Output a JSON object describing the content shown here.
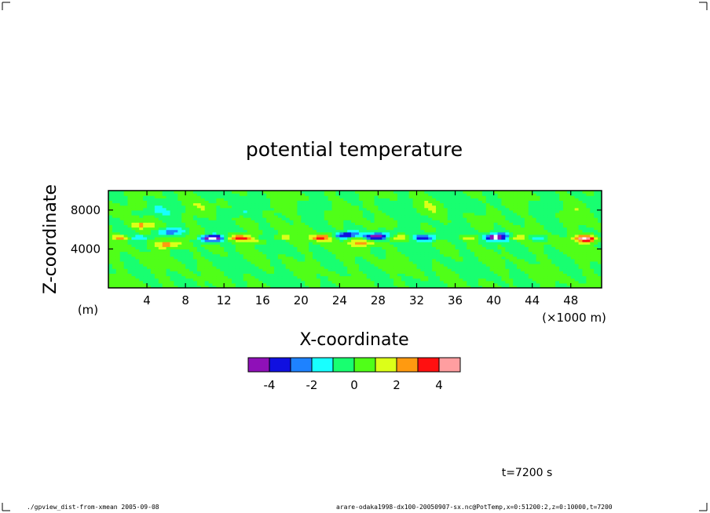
{
  "chart_data": {
    "type": "heatmap",
    "title": "potential temperature",
    "xlabel": "X-coordinate",
    "ylabel": "Z-coordinate",
    "x_unit": "(×1000 m)",
    "y_unit": "(m)",
    "x_ticks": [
      4,
      8,
      12,
      16,
      20,
      24,
      28,
      32,
      36,
      40,
      44,
      48
    ],
    "y_ticks": [
      4000,
      8000
    ],
    "xlim": [
      0,
      51.2
    ],
    "ylim": [
      0,
      10000
    ],
    "colorbar": {
      "levels": [
        -5,
        -4,
        -3,
        -2,
        -1,
        0,
        1,
        2,
        3,
        4,
        5
      ],
      "colors": [
        "#8f10b8",
        "#1010e0",
        "#1e82ff",
        "#18ffff",
        "#18ff70",
        "#50ff18",
        "#dcff18",
        "#ff9a10",
        "#ff1010",
        "#ff9ea0"
      ],
      "tick_labels": [
        "-4",
        "-2",
        "0",
        "2",
        "4"
      ],
      "tick_values": [
        -4,
        -2,
        0,
        2,
        4
      ]
    },
    "features": [
      {
        "x": 24.8,
        "z": 5400,
        "value": -5
      },
      {
        "x": 10.5,
        "z": 5100,
        "value": -4
      },
      {
        "x": 40.5,
        "z": 5300,
        "value": -4
      },
      {
        "x": 33.0,
        "z": 5200,
        "value": -3
      },
      {
        "x": 6.5,
        "z": 5800,
        "value": -3
      },
      {
        "x": 28.0,
        "z": 5400,
        "value": -3
      },
      {
        "x": 13.5,
        "z": 7700,
        "value": -1
      },
      {
        "x": 30.5,
        "z": 6000,
        "value": -1
      },
      {
        "x": 4.0,
        "z": 7800,
        "value": -1
      },
      {
        "x": 6.2,
        "z": 4500,
        "value": 3
      },
      {
        "x": 22.5,
        "z": 5200,
        "value": 4
      },
      {
        "x": 14.8,
        "z": 5100,
        "value": 3
      },
      {
        "x": 3.5,
        "z": 6500,
        "value": 2
      },
      {
        "x": 26.5,
        "z": 4700,
        "value": 3
      },
      {
        "x": 49.5,
        "z": 5100,
        "value": 4
      }
    ],
    "time_label": "t=7200 s"
  },
  "footer": {
    "left": "./gpview_dist-from-xmean  2005-09-08",
    "right": "arare-odaka1998-dx100-20050907-sx.nc@PotTemp,x=0:51200:2,z=0:10000,t=7200"
  }
}
